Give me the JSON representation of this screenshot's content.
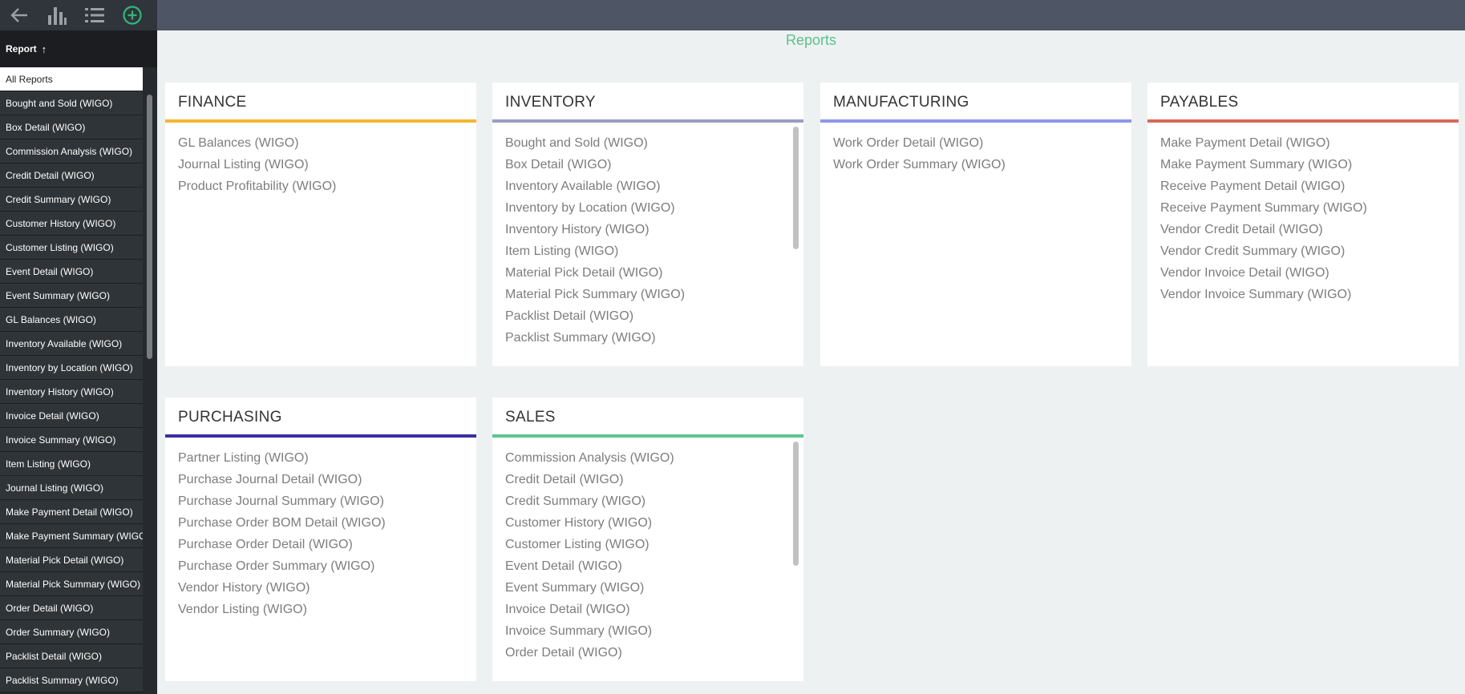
{
  "toolbar": {
    "icons": [
      "back-arrow-icon",
      "bar-chart-icon",
      "list-icon",
      "add-circle-icon"
    ]
  },
  "sidebar": {
    "sort_label": "Report",
    "sort_arrow": "↑",
    "items": [
      "All Reports",
      "Bought and Sold (WIGO)",
      "Box Detail (WIGO)",
      "Commission Analysis (WIGO)",
      "Credit Detail (WIGO)",
      "Credit Summary (WIGO)",
      "Customer History (WIGO)",
      "Customer Listing (WIGO)",
      "Event Detail (WIGO)",
      "Event Summary (WIGO)",
      "GL Balances (WIGO)",
      "Inventory Available (WIGO)",
      "Inventory by Location (WIGO)",
      "Inventory History (WIGO)",
      "Invoice Detail (WIGO)",
      "Invoice Summary (WIGO)",
      "Item Listing (WIGO)",
      "Journal Listing (WIGO)",
      "Make Payment Detail (WIGO)",
      "Make Payment Summary (WIGO",
      "Material Pick Detail (WIGO)",
      "Material Pick Summary (WIGO)",
      "Order Detail (WIGO)",
      "Order Summary (WIGO)",
      "Packlist Detail (WIGO)",
      "Packlist Summary (WIGO)"
    ]
  },
  "page": {
    "title": "Reports"
  },
  "colors": {
    "finance": "#f5b731",
    "inventory": "#9a9ec4",
    "manufacturing": "#8e96e8",
    "payables": "#d56a5d",
    "purchasing": "#3a2fa0",
    "sales": "#5cc68e"
  },
  "cards": {
    "finance": {
      "title": "FINANCE",
      "items": [
        "GL Balances (WIGO)",
        "Journal Listing (WIGO)",
        "Product Profitability (WIGO)"
      ]
    },
    "inventory": {
      "title": "INVENTORY",
      "items": [
        "Bought and Sold (WIGO)",
        "Box Detail (WIGO)",
        "Inventory Available (WIGO)",
        "Inventory by Location (WIGO)",
        "Inventory History (WIGO)",
        "Item Listing (WIGO)",
        "Material Pick Detail (WIGO)",
        "Material Pick Summary (WIGO)",
        "Packlist Detail (WIGO)",
        "Packlist Summary (WIGO)"
      ]
    },
    "manufacturing": {
      "title": "MANUFACTURING",
      "items": [
        "Work Order Detail (WIGO)",
        "Work Order Summary (WIGO)"
      ]
    },
    "payables": {
      "title": "PAYABLES",
      "items": [
        "Make Payment Detail (WIGO)",
        "Make Payment Summary (WIGO)",
        "Receive Payment Detail (WIGO)",
        "Receive Payment Summary (WIGO)",
        "Vendor Credit Detail (WIGO)",
        "Vendor Credit Summary (WIGO)",
        "Vendor Invoice Detail (WIGO)",
        "Vendor Invoice Summary (WIGO)"
      ]
    },
    "purchasing": {
      "title": "PURCHASING",
      "items": [
        "Partner Listing (WIGO)",
        "Purchase Journal Detail (WIGO)",
        "Purchase Journal Summary (WIGO)",
        "Purchase Order BOM Detail (WIGO)",
        "Purchase Order Detail (WIGO)",
        "Purchase Order Summary (WIGO)",
        "Vendor History (WIGO)",
        "Vendor Listing (WIGO)"
      ]
    },
    "sales": {
      "title": "SALES",
      "items": [
        "Commission Analysis (WIGO)",
        "Credit Detail (WIGO)",
        "Credit Summary (WIGO)",
        "Customer History (WIGO)",
        "Customer Listing (WIGO)",
        "Event Detail (WIGO)",
        "Event Summary (WIGO)",
        "Invoice Detail (WIGO)",
        "Invoice Summary (WIGO)",
        "Order Detail (WIGO)"
      ]
    }
  }
}
